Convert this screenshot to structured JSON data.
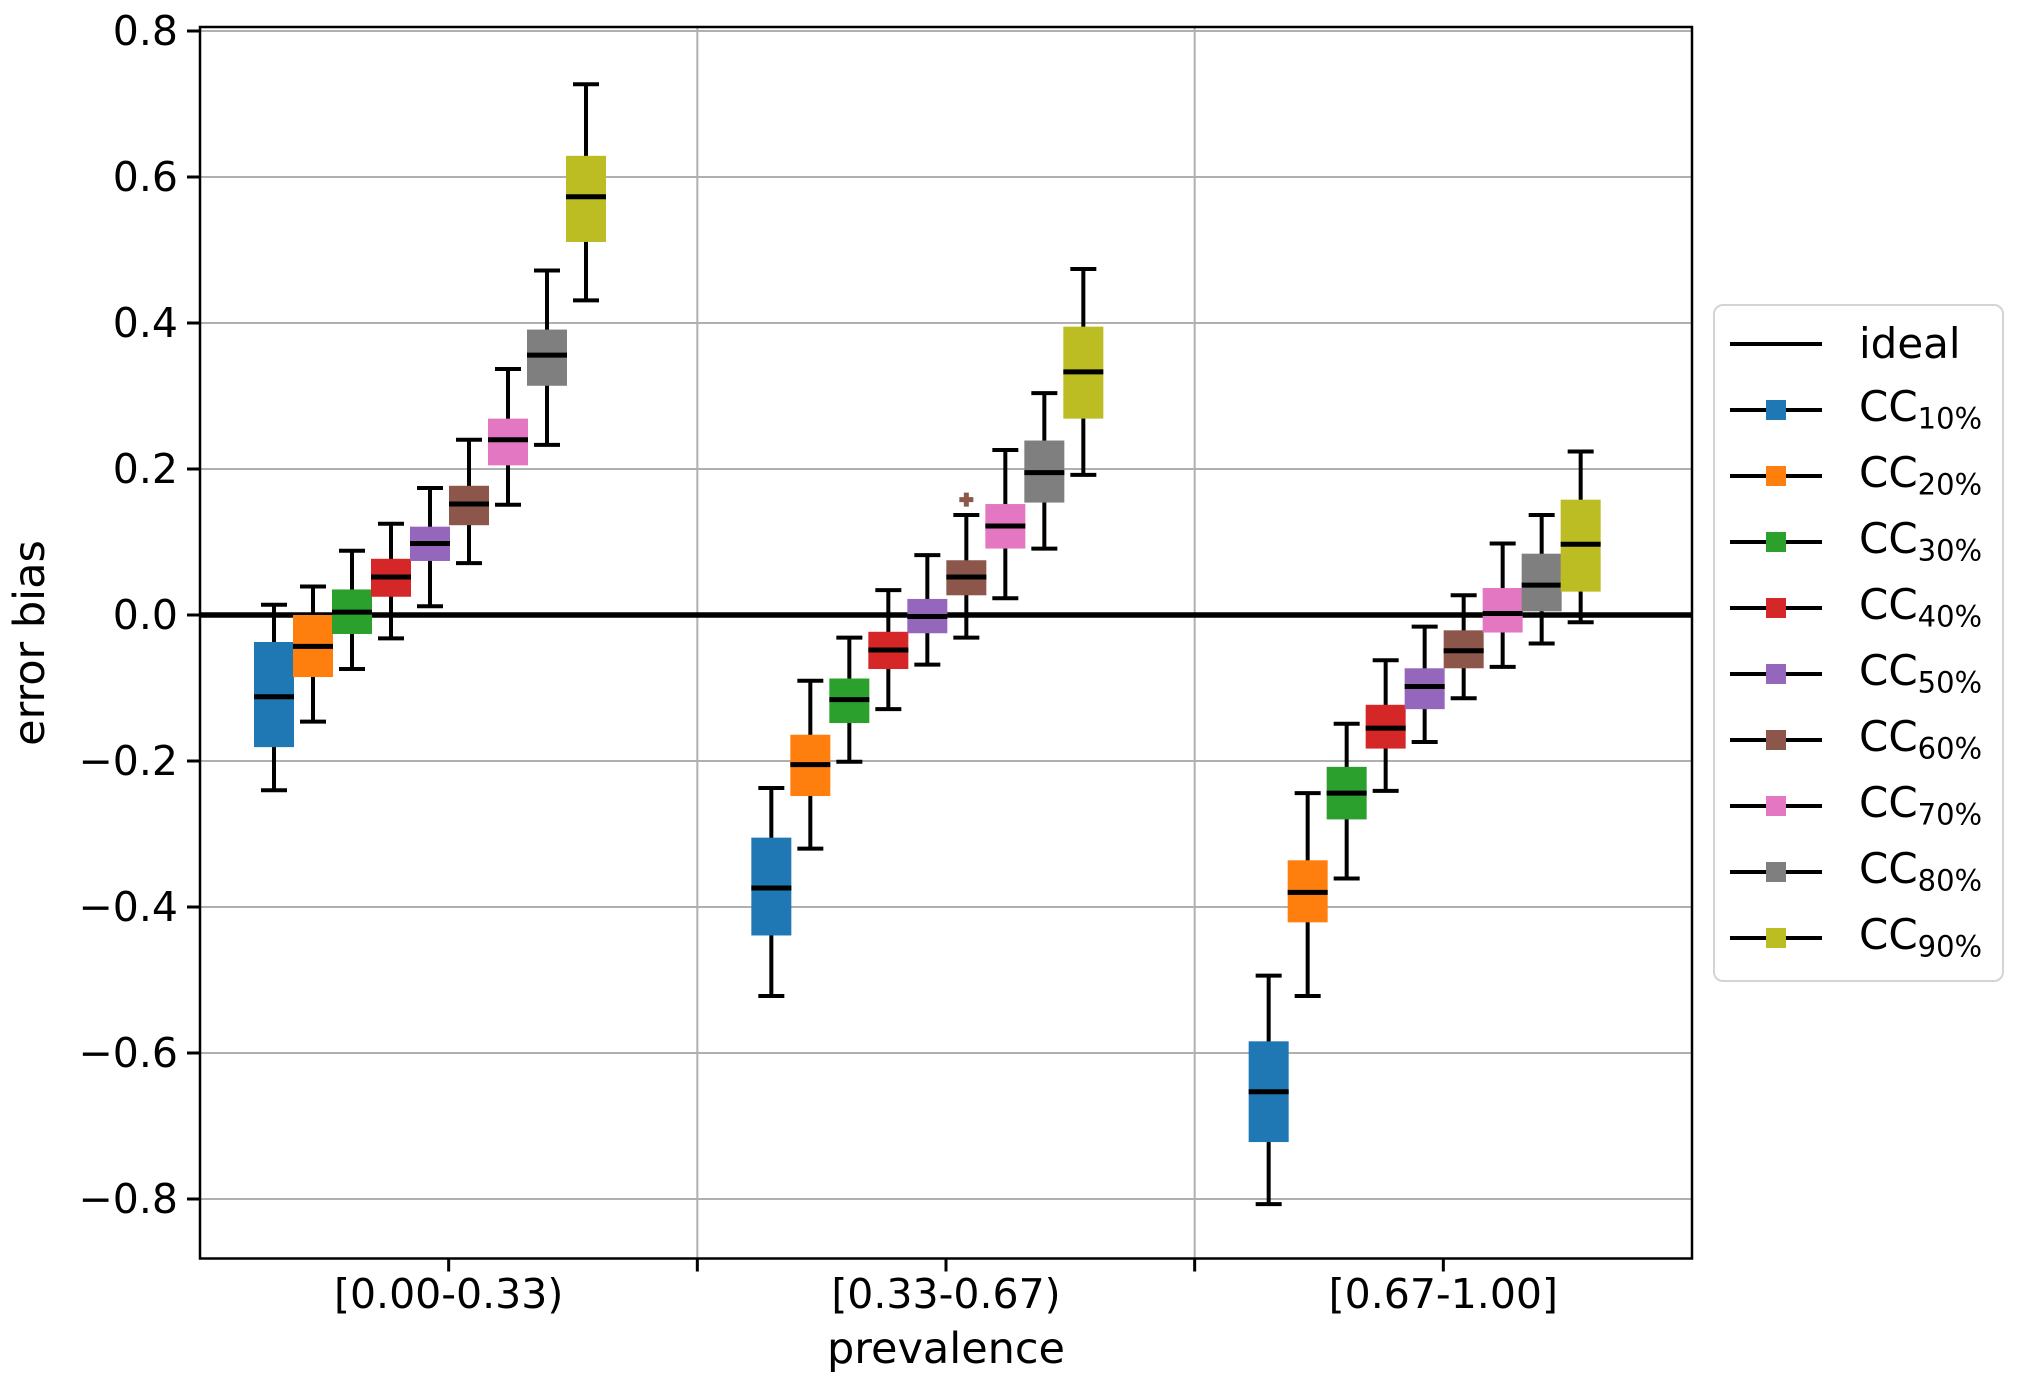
{
  "chart_data": {
    "type": "grouped_boxplot",
    "title": "",
    "xlabel": "prevalence",
    "ylabel": "error bias",
    "categories": [
      "[0.00-0.33)",
      "[0.33-0.67)",
      "[0.67-1.00]"
    ],
    "ylim": [
      -0.88,
      0.81
    ],
    "yticks": [
      0.8,
      0.6,
      0.4,
      0.2,
      0.0,
      -0.2,
      -0.4,
      -0.6,
      -0.8
    ],
    "grid": true,
    "grid_color": "#b0b0b0",
    "ideal_line": {
      "label": "ideal",
      "y": 0.0,
      "color": "#000000"
    },
    "legend": {
      "position": "right",
      "items": [
        {
          "label": "ideal",
          "marker": "line",
          "color": "#000000"
        },
        {
          "label": "CC",
          "sub": "10%",
          "marker": "line-square",
          "color": "#1f77b4"
        },
        {
          "label": "CC",
          "sub": "20%",
          "marker": "line-square",
          "color": "#ff7f0e"
        },
        {
          "label": "CC",
          "sub": "30%",
          "marker": "line-square",
          "color": "#2ca02c"
        },
        {
          "label": "CC",
          "sub": "40%",
          "marker": "line-square",
          "color": "#d62728"
        },
        {
          "label": "CC",
          "sub": "50%",
          "marker": "line-square",
          "color": "#9467bd"
        },
        {
          "label": "CC",
          "sub": "60%",
          "marker": "line-square",
          "color": "#8c564b"
        },
        {
          "label": "CC",
          "sub": "70%",
          "marker": "line-square",
          "color": "#e377c2"
        },
        {
          "label": "CC",
          "sub": "80%",
          "marker": "line-square",
          "color": "#7f7f7f"
        },
        {
          "label": "CC",
          "sub": "90%",
          "marker": "line-square",
          "color": "#bcbd22"
        }
      ]
    },
    "series": [
      {
        "name": "CC10%",
        "label": "CC",
        "sub": "10%",
        "color": "#1f77b4",
        "boxes": [
          {
            "whisker_low": -0.24,
            "q1": -0.181,
            "median": -0.112,
            "q3": -0.037,
            "whisker_high": 0.014
          },
          {
            "whisker_low": -0.522,
            "q1": -0.439,
            "median": -0.374,
            "q3": -0.305,
            "whisker_high": -0.237
          },
          {
            "whisker_low": -0.807,
            "q1": -0.722,
            "median": -0.653,
            "q3": -0.584,
            "whisker_high": -0.494
          }
        ]
      },
      {
        "name": "CC20%",
        "label": "CC",
        "sub": "20%",
        "color": "#ff7f0e",
        "boxes": [
          {
            "whisker_low": -0.146,
            "q1": -0.085,
            "median": -0.043,
            "q3": 0.0,
            "whisker_high": 0.039
          },
          {
            "whisker_low": -0.32,
            "q1": -0.248,
            "median": -0.205,
            "q3": -0.164,
            "whisker_high": -0.09
          },
          {
            "whisker_low": -0.522,
            "q1": -0.421,
            "median": -0.38,
            "q3": -0.336,
            "whisker_high": -0.244
          }
        ]
      },
      {
        "name": "CC30%",
        "label": "CC",
        "sub": "30%",
        "color": "#2ca02c",
        "boxes": [
          {
            "whisker_low": -0.074,
            "q1": -0.026,
            "median": 0.004,
            "q3": 0.035,
            "whisker_high": 0.088
          },
          {
            "whisker_low": -0.201,
            "q1": -0.148,
            "median": -0.116,
            "q3": -0.087,
            "whisker_high": -0.031
          },
          {
            "whisker_low": -0.361,
            "q1": -0.28,
            "median": -0.244,
            "q3": -0.208,
            "whisker_high": -0.149
          }
        ]
      },
      {
        "name": "CC40%",
        "label": "CC",
        "sub": "40%",
        "color": "#d62728",
        "boxes": [
          {
            "whisker_low": -0.032,
            "q1": 0.025,
            "median": 0.052,
            "q3": 0.077,
            "whisker_high": 0.125
          },
          {
            "whisker_low": -0.129,
            "q1": -0.074,
            "median": -0.048,
            "q3": -0.023,
            "whisker_high": 0.034
          },
          {
            "whisker_low": -0.241,
            "q1": -0.183,
            "median": -0.155,
            "q3": -0.123,
            "whisker_high": -0.062
          }
        ]
      },
      {
        "name": "CC50%",
        "label": "CC",
        "sub": "50%",
        "color": "#9467bd",
        "boxes": [
          {
            "whisker_low": 0.012,
            "q1": 0.074,
            "median": 0.098,
            "q3": 0.121,
            "whisker_high": 0.174
          },
          {
            "whisker_low": -0.068,
            "q1": -0.025,
            "median": -0.002,
            "q3": 0.022,
            "whisker_high": 0.082
          },
          {
            "whisker_low": -0.174,
            "q1": -0.129,
            "median": -0.098,
            "q3": -0.073,
            "whisker_high": -0.016
          }
        ]
      },
      {
        "name": "CC60%",
        "label": "CC",
        "sub": "60%",
        "color": "#8c564b",
        "boxes": [
          {
            "whisker_low": 0.071,
            "q1": 0.123,
            "median": 0.152,
            "q3": 0.177,
            "whisker_high": 0.24
          },
          {
            "whisker_low": -0.031,
            "q1": 0.027,
            "median": 0.052,
            "q3": 0.075,
            "whisker_high": 0.137
          },
          {
            "whisker_low": -0.114,
            "q1": -0.073,
            "median": -0.049,
            "q3": -0.021,
            "whisker_high": 0.027
          }
        ]
      },
      {
        "name": "CC70%",
        "label": "CC",
        "sub": "70%",
        "color": "#e377c2",
        "boxes": [
          {
            "whisker_low": 0.151,
            "q1": 0.205,
            "median": 0.24,
            "q3": 0.269,
            "whisker_high": 0.337
          },
          {
            "whisker_low": 0.023,
            "q1": 0.091,
            "median": 0.122,
            "q3": 0.152,
            "whisker_high": 0.226
          },
          {
            "whisker_low": -0.071,
            "q1": -0.024,
            "median": 0.002,
            "q3": 0.037,
            "whisker_high": 0.098
          }
        ]
      },
      {
        "name": "CC80%",
        "label": "CC",
        "sub": "80%",
        "color": "#7f7f7f",
        "boxes": [
          {
            "whisker_low": 0.233,
            "q1": 0.314,
            "median": 0.356,
            "q3": 0.391,
            "whisker_high": 0.472
          },
          {
            "whisker_low": 0.091,
            "q1": 0.154,
            "median": 0.195,
            "q3": 0.239,
            "whisker_high": 0.304
          },
          {
            "whisker_low": -0.039,
            "q1": 0.005,
            "median": 0.041,
            "q3": 0.084,
            "whisker_high": 0.137
          }
        ]
      },
      {
        "name": "CC90%",
        "label": "CC",
        "sub": "90%",
        "color": "#bcbd22",
        "boxes": [
          {
            "whisker_low": 0.431,
            "q1": 0.511,
            "median": 0.573,
            "q3": 0.629,
            "whisker_high": 0.727
          },
          {
            "whisker_low": 0.192,
            "q1": 0.269,
            "median": 0.333,
            "q3": 0.395,
            "whisker_high": 0.474
          },
          {
            "whisker_low": -0.01,
            "q1": 0.032,
            "median": 0.097,
            "q3": 0.158,
            "whisker_high": 0.224
          }
        ]
      }
    ],
    "outliers": [
      {
        "series_index": 5,
        "series": "CC60%",
        "group_index": 1,
        "group": "[0.33-0.67)",
        "value": 0.158
      }
    ]
  }
}
